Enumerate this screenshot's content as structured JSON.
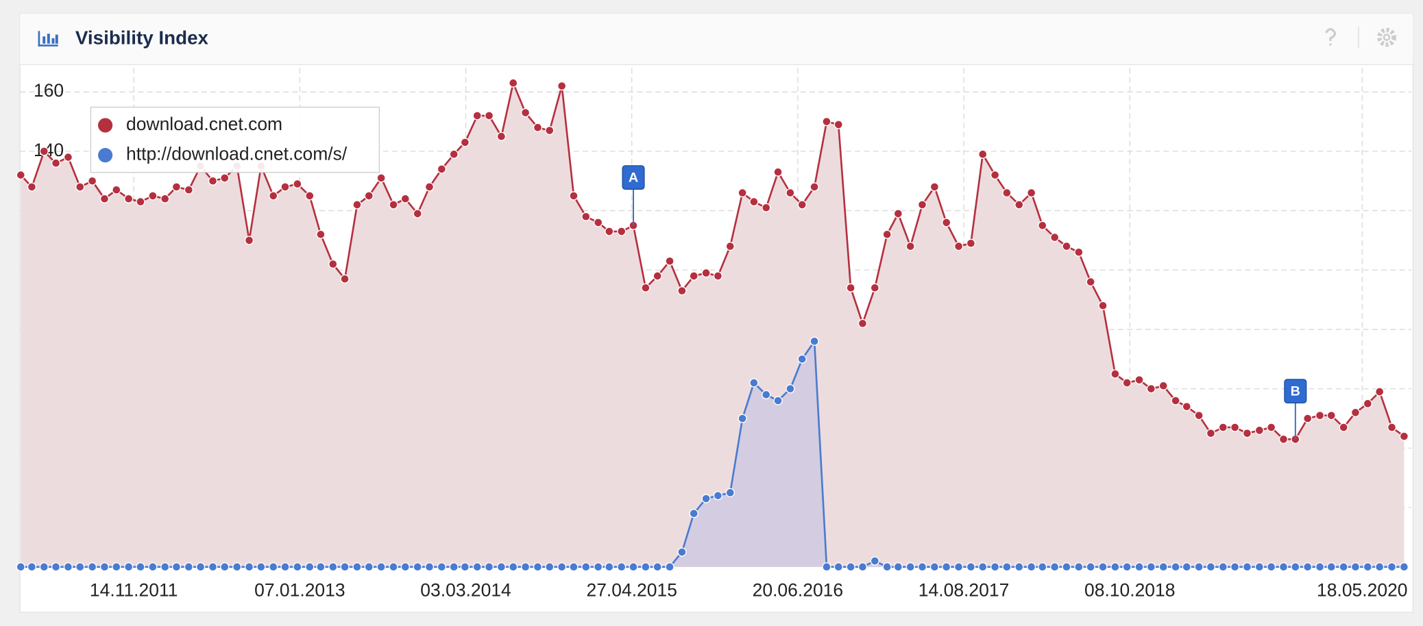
{
  "chart_data": {
    "type": "line",
    "title": "Visibility Index",
    "x": [
      "2011-02-01",
      "2011-03-01",
      "2011-04-01",
      "2011-05-01",
      "2011-06-01",
      "2011-07-01",
      "2011-08-01",
      "2011-09-01",
      "2011-10-01",
      "2011-11-01",
      "2011-12-01",
      "2012-01-01",
      "2012-02-01",
      "2012-03-01",
      "2012-04-01",
      "2012-05-01",
      "2012-06-01",
      "2012-07-01",
      "2012-08-01",
      "2012-09-01",
      "2012-10-01",
      "2012-11-01",
      "2012-12-01",
      "2013-01-01",
      "2013-02-01",
      "2013-03-01",
      "2013-04-01",
      "2013-05-01",
      "2013-06-01",
      "2013-07-01",
      "2013-08-01",
      "2013-09-01",
      "2013-10-01",
      "2013-11-01",
      "2013-12-01",
      "2014-01-01",
      "2014-02-01",
      "2014-03-01",
      "2014-04-01",
      "2014-05-01",
      "2014-06-01",
      "2014-07-01",
      "2014-08-01",
      "2014-09-01",
      "2014-10-01",
      "2014-11-01",
      "2014-12-01",
      "2015-01-01",
      "2015-02-01",
      "2015-03-01",
      "2015-04-01",
      "2015-05-01",
      "2015-06-01",
      "2015-07-01",
      "2015-08-01",
      "2015-09-01",
      "2015-10-01",
      "2015-11-01",
      "2015-12-01",
      "2016-01-01",
      "2016-02-01",
      "2016-03-01",
      "2016-04-01",
      "2016-05-01",
      "2016-06-01",
      "2016-07-01",
      "2016-08-01",
      "2016-09-01",
      "2016-10-01",
      "2016-11-01",
      "2016-12-01",
      "2017-01-01",
      "2017-02-01",
      "2017-03-01",
      "2017-04-01",
      "2017-05-01",
      "2017-06-01",
      "2017-07-01",
      "2017-08-01",
      "2017-09-01",
      "2017-10-01",
      "2017-11-01",
      "2017-12-01",
      "2018-01-01",
      "2018-02-01",
      "2018-03-01",
      "2018-04-01",
      "2018-05-01",
      "2018-06-01",
      "2018-07-01",
      "2018-08-01",
      "2018-09-01",
      "2018-10-01",
      "2018-11-01",
      "2018-12-01",
      "2019-01-01",
      "2019-02-01",
      "2019-03-01",
      "2019-04-01",
      "2019-05-01",
      "2019-06-01",
      "2019-07-01",
      "2019-08-01",
      "2019-09-01",
      "2019-10-01",
      "2019-11-01",
      "2019-12-01",
      "2020-01-01",
      "2020-02-01",
      "2020-03-01",
      "2020-04-01",
      "2020-05-01",
      "2020-06-01",
      "2020-07-01",
      "2020-08-01",
      "2020-09-01"
    ],
    "series": [
      {
        "name": "download.cnet.com",
        "color": "#b5303f",
        "fill": "#eddcde",
        "values": [
          132,
          128,
          140,
          136,
          138,
          128,
          130,
          124,
          127,
          124,
          123,
          125,
          124,
          128,
          127,
          135,
          130,
          131,
          135,
          110,
          135,
          125,
          128,
          129,
          125,
          112,
          102,
          97,
          122,
          125,
          131,
          122,
          124,
          119,
          128,
          134,
          139,
          143,
          152,
          152,
          145,
          163,
          153,
          148,
          147,
          162,
          125,
          118,
          116,
          113,
          113,
          115,
          94,
          98,
          103,
          93,
          98,
          99,
          98,
          108,
          126,
          123,
          121,
          133,
          126,
          122,
          128,
          150,
          149,
          94,
          82,
          94,
          112,
          119,
          108,
          122,
          128,
          116,
          108,
          109,
          139,
          132,
          126,
          122,
          126,
          115,
          111,
          108,
          106,
          96,
          88,
          65,
          62,
          63,
          60,
          61,
          56,
          54,
          51,
          45,
          47,
          47,
          45,
          46,
          47,
          43,
          43,
          50,
          51,
          51,
          47,
          52,
          55,
          59,
          47,
          44
        ]
      },
      {
        "name": "http://download.cnet.com/s/",
        "color": "#4a7bd0",
        "fill": "#cfc9e0",
        "values": [
          0,
          0,
          0,
          0,
          0,
          0,
          0,
          0,
          0,
          0,
          0,
          0,
          0,
          0,
          0,
          0,
          0,
          0,
          0,
          0,
          0,
          0,
          0,
          0,
          0,
          0,
          0,
          0,
          0,
          0,
          0,
          0,
          0,
          0,
          0,
          0,
          0,
          0,
          0,
          0,
          0,
          0,
          0,
          0,
          0,
          0,
          0,
          0,
          0,
          0,
          0,
          0,
          0,
          0,
          0,
          5,
          18,
          23,
          24,
          25,
          50,
          62,
          58,
          56,
          60,
          70,
          76,
          0,
          0,
          0,
          0,
          2,
          0,
          0,
          0,
          0,
          0,
          0,
          0,
          0,
          0,
          0,
          0,
          0,
          0,
          0,
          0,
          0,
          0,
          0,
          0,
          0,
          0,
          0,
          0,
          0,
          0,
          0,
          0,
          0,
          0,
          0,
          0,
          0,
          0,
          0,
          0,
          0,
          0,
          0,
          0,
          0,
          0,
          0,
          0,
          0
        ]
      }
    ],
    "xlim": [
      "2011-01-30",
      "2020-09-19"
    ],
    "xticks": [
      {
        "value": "2011-11-14",
        "label": "14.11.2011"
      },
      {
        "value": "2013-01-07",
        "label": "07.01.2013"
      },
      {
        "value": "2014-03-03",
        "label": "03.03.2014"
      },
      {
        "value": "2015-04-27",
        "label": "27.04.2015"
      },
      {
        "value": "2016-06-20",
        "label": "20.06.2016"
      },
      {
        "value": "2017-08-14",
        "label": "14.08.2017"
      },
      {
        "value": "2018-10-08",
        "label": "08.10.2018"
      },
      {
        "value": "2020-05-18",
        "label": "18.05.2020"
      }
    ],
    "ylim": [
      0,
      168
    ],
    "yticks": [
      20,
      40,
      60,
      80,
      100,
      120,
      140,
      160
    ],
    "grid": true,
    "legend": "upper left",
    "annotations": [
      {
        "label": "A",
        "x": "2015-05-01"
      },
      {
        "label": "B",
        "x": "2019-12-01"
      }
    ]
  }
}
